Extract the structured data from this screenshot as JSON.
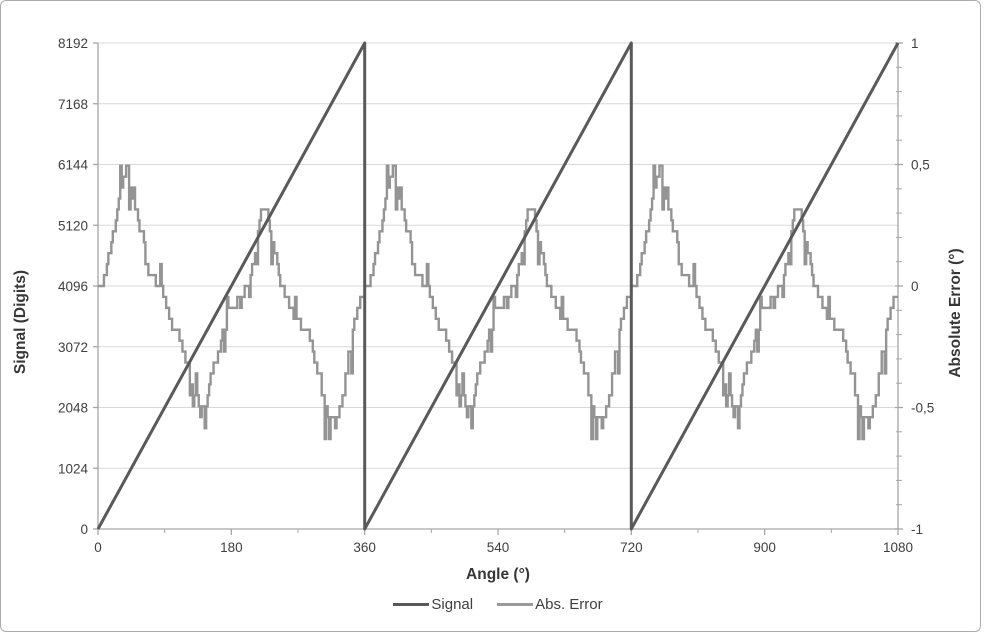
{
  "chart_data": {
    "type": "line",
    "title": "",
    "x_axis": {
      "label": "Angle (°)",
      "min": 0,
      "max": 1080,
      "major_tick": 180,
      "minor_tick": 90,
      "tick_labels": [
        "0",
        "180",
        "360",
        "540",
        "720",
        "900",
        "1080"
      ]
    },
    "left_axis": {
      "label": "Signal (Digits)",
      "min": 0,
      "max": 8192,
      "major_tick": 1024,
      "tick_labels": [
        "0",
        "1024",
        "2048",
        "3072",
        "4096",
        "5120",
        "6144",
        "7168",
        "8192"
      ]
    },
    "right_axis": {
      "label": "Absolute Error (°)",
      "min": -1,
      "max": 1,
      "major_tick": 0.5,
      "minor_tick": 0.1,
      "decimal_separator": ",",
      "tick_labels": [
        "-1",
        "-0,5",
        "0",
        "0,5",
        "1"
      ]
    },
    "grid": {
      "horizontal": true,
      "vertical": false
    },
    "legend": {
      "position": "bottom",
      "entries": [
        {
          "label": "Signal",
          "color": "#595959"
        },
        {
          "label": "Abs. Error",
          "color": "#999999"
        }
      ]
    },
    "series": [
      {
        "name": "Signal",
        "axis": "left",
        "color": "#595959",
        "width": 3,
        "shape": "sawtooth",
        "points": [
          [
            0,
            0
          ],
          [
            360,
            8192
          ],
          [
            360,
            0
          ],
          [
            720,
            8192
          ],
          [
            720,
            0
          ],
          [
            1080,
            8192
          ]
        ]
      },
      {
        "name": "Abs. Error",
        "axis": "right",
        "color": "#949494",
        "width": 2.4,
        "shape": "periodic-noisy-steps",
        "period_deg": 360,
        "repeat": 3,
        "noise": {
          "seed": 11,
          "base_amplitude": 0.022,
          "spike_probability": 0.1,
          "spike_amplitude": 0.1,
          "quantize_step": 0.045,
          "sample_step_deg": 2,
          "clamp": [
            -0.64,
            0.5
          ]
        },
        "period_points": [
          [
            0,
            -0.02
          ],
          [
            5,
            0.01
          ],
          [
            10,
            0.05
          ],
          [
            15,
            0.12
          ],
          [
            20,
            0.2
          ],
          [
            25,
            0.3
          ],
          [
            30,
            0.39
          ],
          [
            35,
            0.46
          ],
          [
            40,
            0.48
          ],
          [
            45,
            0.4
          ],
          [
            50,
            0.32
          ],
          [
            55,
            0.27
          ],
          [
            60,
            0.22
          ],
          [
            65,
            0.1
          ],
          [
            70,
            0.05
          ],
          [
            75,
            0.04
          ],
          [
            80,
            0.02
          ],
          [
            85,
            -0.01
          ],
          [
            90,
            -0.05
          ],
          [
            95,
            -0.12
          ],
          [
            100,
            -0.17
          ],
          [
            105,
            -0.2
          ],
          [
            110,
            -0.22
          ],
          [
            115,
            -0.27
          ],
          [
            120,
            -0.32
          ],
          [
            125,
            -0.38
          ],
          [
            130,
            -0.44
          ],
          [
            135,
            -0.49
          ],
          [
            140,
            -0.51
          ],
          [
            145,
            -0.48
          ],
          [
            150,
            -0.43
          ],
          [
            155,
            -0.36
          ],
          [
            160,
            -0.28
          ],
          [
            165,
            -0.22
          ],
          [
            170,
            -0.17
          ],
          [
            175,
            -0.12
          ],
          [
            180,
            -0.08
          ],
          [
            185,
            -0.07
          ],
          [
            190,
            -0.06
          ],
          [
            195,
            -0.05
          ],
          [
            200,
            -0.02
          ],
          [
            205,
            0.03
          ],
          [
            210,
            0.11
          ],
          [
            215,
            0.21
          ],
          [
            220,
            0.3
          ],
          [
            225,
            0.33
          ],
          [
            230,
            0.27
          ],
          [
            235,
            0.19
          ],
          [
            240,
            0.11
          ],
          [
            245,
            0.04
          ],
          [
            250,
            -0.02
          ],
          [
            255,
            -0.06
          ],
          [
            260,
            -0.1
          ],
          [
            265,
            -0.12
          ],
          [
            270,
            -0.14
          ],
          [
            275,
            -0.16
          ],
          [
            280,
            -0.18
          ],
          [
            285,
            -0.21
          ],
          [
            290,
            -0.27
          ],
          [
            295,
            -0.34
          ],
          [
            300,
            -0.42
          ],
          [
            305,
            -0.48
          ],
          [
            310,
            -0.53
          ],
          [
            315,
            -0.57
          ],
          [
            320,
            -0.55
          ],
          [
            325,
            -0.5
          ],
          [
            330,
            -0.43
          ],
          [
            335,
            -0.35
          ],
          [
            340,
            -0.26
          ],
          [
            345,
            -0.17
          ],
          [
            350,
            -0.09
          ],
          [
            355,
            -0.04
          ],
          [
            360,
            -0.02
          ]
        ]
      }
    ],
    "colors": {
      "gridline": "#D9D9D9",
      "axis": "#A6A6A6",
      "tick_label_text": "#404040",
      "axis_title_text": "#363636",
      "background": "#FFFFFF",
      "border": "#ABABAB"
    }
  }
}
